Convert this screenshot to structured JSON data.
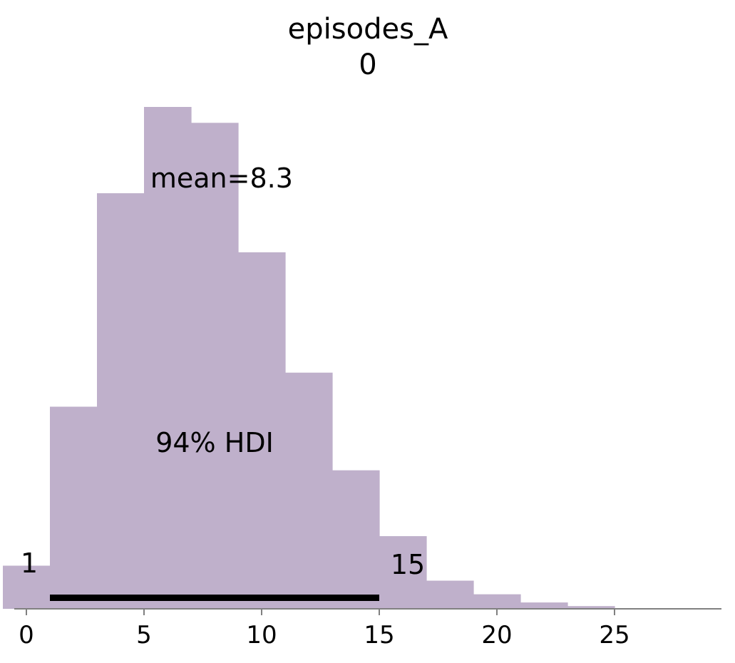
{
  "chart_data": {
    "type": "bar",
    "title": "episodes_A",
    "subtitle": "0",
    "bar_color": "#bfb0cb",
    "hdi_color": "#000000",
    "axis_color": "#808080",
    "bins": [
      {
        "x0": -1,
        "x1": 1,
        "value": 0.0095
      },
      {
        "x0": 1,
        "x1": 3,
        "value": 0.0445
      },
      {
        "x0": 3,
        "x1": 5,
        "value": 0.0915
      },
      {
        "x0": 5,
        "x1": 7,
        "value": 0.1105
      },
      {
        "x0": 7,
        "x1": 9,
        "value": 0.107
      },
      {
        "x0": 9,
        "x1": 11,
        "value": 0.0785
      },
      {
        "x0": 11,
        "x1": 13,
        "value": 0.052
      },
      {
        "x0": 13,
        "x1": 15,
        "value": 0.0305
      },
      {
        "x0": 15,
        "x1": 17,
        "value": 0.016
      },
      {
        "x0": 17,
        "x1": 19,
        "value": 0.0062
      },
      {
        "x0": 19,
        "x1": 21,
        "value": 0.0032
      },
      {
        "x0": 21,
        "x1": 23,
        "value": 0.0014
      },
      {
        "x0": 23,
        "x1": 25,
        "value": 0.0006
      }
    ],
    "xlim": [
      -0.5,
      29.5
    ],
    "ylim": [
      0,
      0.1105
    ],
    "xticks": [
      0,
      5,
      10,
      15,
      20,
      25
    ],
    "xtick_labels": [
      "0",
      "5",
      "10",
      "15",
      "20",
      "25"
    ],
    "mean_label": "mean=8.3",
    "mean_value": 8.3,
    "hdi_label": "94% HDI",
    "hdi_low": 1,
    "hdi_high": 15,
    "hdi_low_label": "1",
    "hdi_high_label": "15",
    "grid": false
  }
}
